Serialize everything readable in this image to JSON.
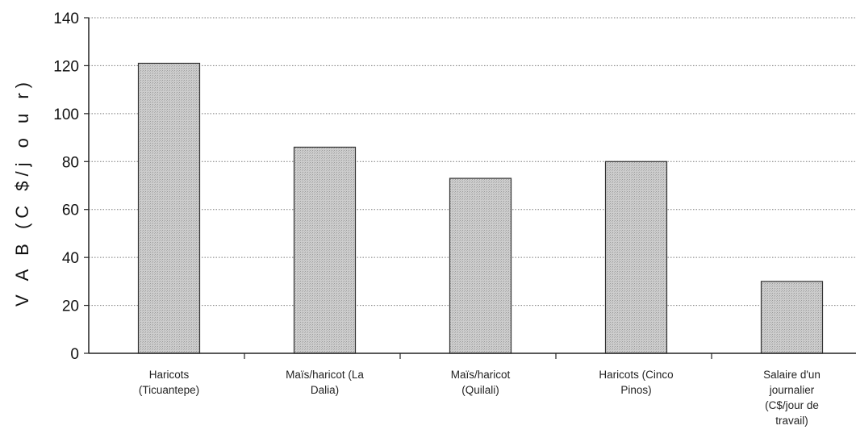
{
  "chart_data": {
    "type": "bar",
    "ylabel": "V A B  (C $/j o u r)",
    "xlabel": "",
    "ylim": [
      0,
      140
    ],
    "yticks": [
      0,
      20,
      40,
      60,
      80,
      100,
      120,
      140
    ],
    "grid": true,
    "legend": "none",
    "bar_color": "#c9c9c9",
    "categories": [
      [
        "Haricots",
        "(Ticuantepe)"
      ],
      [
        "Maïs/haricot (La",
        "Dalia)"
      ],
      [
        "Maïs/haricot",
        "(Quilali)"
      ],
      [
        "Haricots (Cinco",
        "Pinos)"
      ],
      [
        "Salaire d'un",
        "journalier",
        "(C$/jour de",
        "travail)"
      ]
    ],
    "values": [
      121,
      86,
      73,
      80,
      30
    ]
  }
}
